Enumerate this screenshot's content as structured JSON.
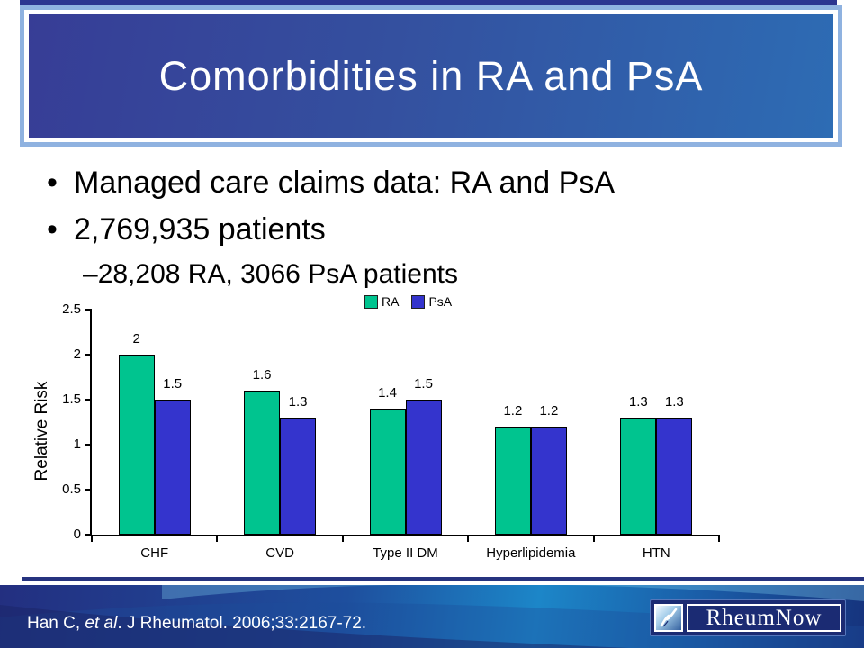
{
  "title": {
    "text": "Comorbidities in RA and PsA"
  },
  "bullets": {
    "marker": "•",
    "b1": "Managed care claims data: RA and PsA",
    "b2": "2,769,935 patients",
    "sub_marker": "–",
    "sub": "28,208 RA, 3066 PsA patients"
  },
  "chart_data": {
    "type": "bar",
    "title": "",
    "categories": [
      "CHF",
      "CVD",
      "Type II DM",
      "Hyperlipidemia",
      "HTN"
    ],
    "series": [
      {
        "name": "RA",
        "color": "#00C48F",
        "values": [
          2,
          1.6,
          1.4,
          1.2,
          1.3
        ]
      },
      {
        "name": "PsA",
        "color": "#3434CD",
        "values": [
          1.5,
          1.3,
          1.5,
          1.2,
          1.3
        ]
      }
    ],
    "xlabel": "",
    "ylabel": "Relative Risk",
    "ylim": [
      0,
      2.5
    ],
    "yticks": [
      "0",
      "0.5",
      "1",
      "1.5",
      "2",
      "2.5"
    ],
    "grid": false,
    "legend_position": "top"
  },
  "footer": {
    "citation_prefix": "Han C, ",
    "citation_italic": "et al",
    "citation_suffix": ". J Rheumatol.  2006;33:2167-72.",
    "logo": {
      "text": "RheumNow"
    }
  },
  "colors": {
    "title_frame": "#8FB2E0",
    "title_gradient_start": "#373D96",
    "title_gradient_end": "#2D6CB4",
    "top_strip": "#2C3590",
    "bar_ra": "#00C48F",
    "bar_psa": "#3434CD",
    "footer_navy": "#232F80",
    "footer_bright": "#1C86C8"
  }
}
